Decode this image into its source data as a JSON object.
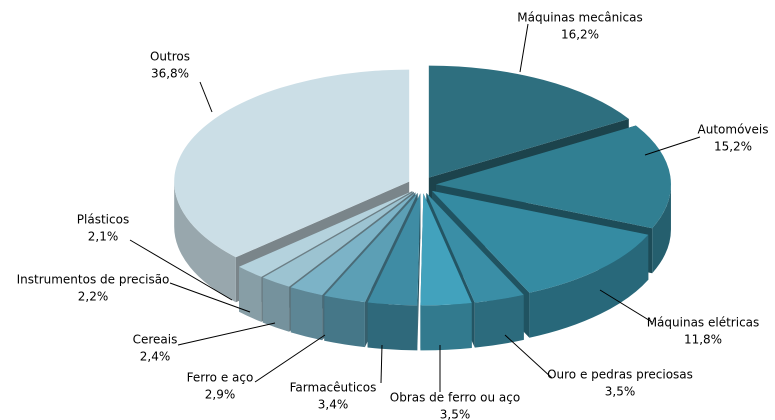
{
  "chart_data": {
    "type": "pie3d",
    "categories": [
      "Máquinas mecânicas",
      "Automóveis",
      "Máquinas elétricas",
      "Ouro e pedras preciosas",
      "Obras de ferro ou aço",
      "Farmacêuticos",
      "Ferro e aço",
      "Cereais",
      "Instrumentos de precisão",
      "Plásticos",
      "Outros"
    ],
    "values": [
      16.2,
      15.2,
      11.8,
      3.5,
      3.5,
      3.4,
      2.9,
      2.4,
      2.2,
      2.1,
      36.8
    ],
    "value_labels": [
      "16,2%",
      "15,2%",
      "11,8%",
      "3,5%",
      "3,5%",
      "3,4%",
      "2,9%",
      "2,4%",
      "2,2%",
      "2,1%",
      "36,8%"
    ],
    "colors": [
      "#2e6f7f",
      "#317f92",
      "#358ba2",
      "#3a8ea6",
      "#42a2bd",
      "#3f8ca4",
      "#5c9fb5",
      "#7cb3c7",
      "#9cc3d1",
      "#b4d2dd",
      "#cbdee6"
    ]
  }
}
